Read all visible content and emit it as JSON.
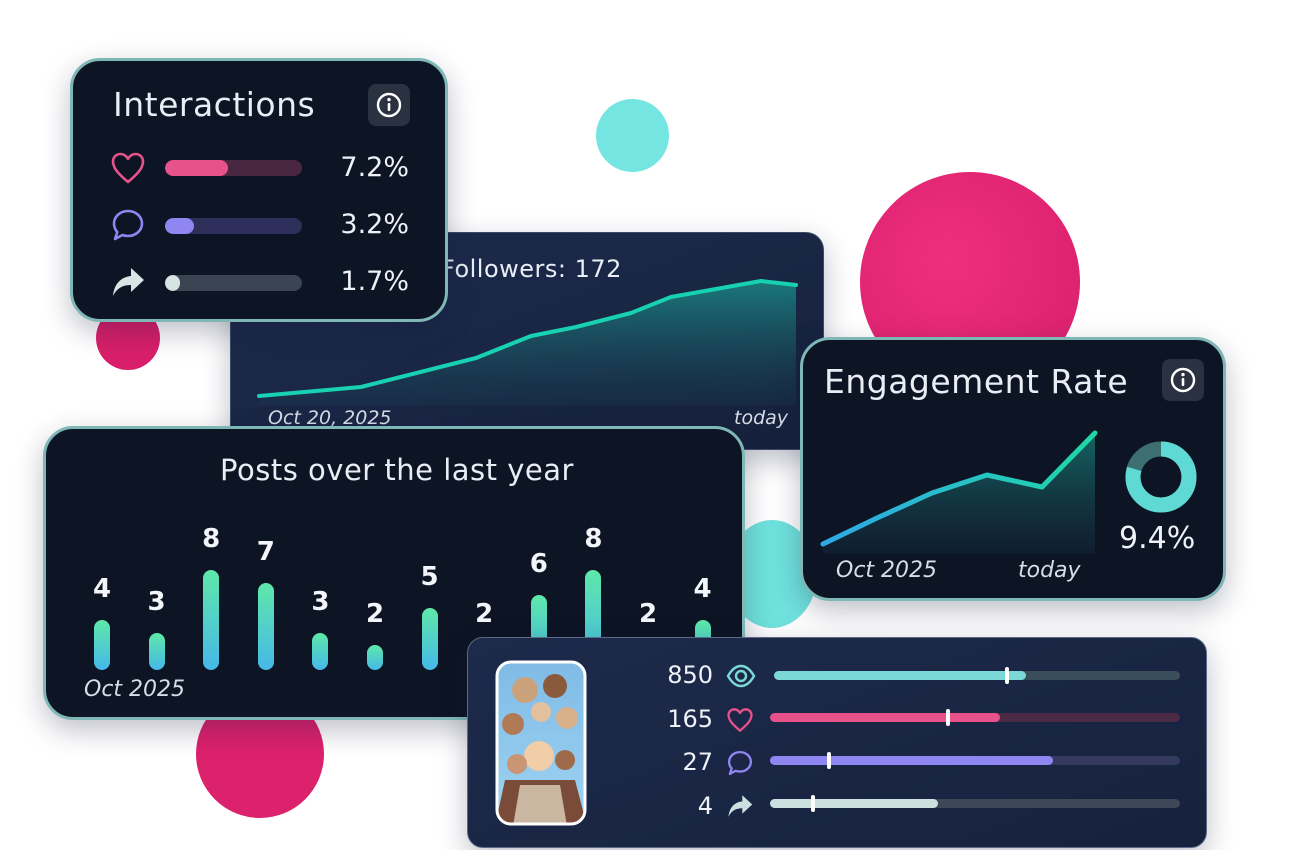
{
  "interactions": {
    "title": "Interactions",
    "info_icon": "info-circle-icon",
    "rows": [
      {
        "icon": "heart-icon",
        "value": "7.2%",
        "fraction": 0.46,
        "color": "#e7528a",
        "track": "#4a2740"
      },
      {
        "icon": "comment-icon",
        "value": "3.2%",
        "fraction": 0.21,
        "color": "#8f86f2",
        "track": "#2e2f5a"
      },
      {
        "icon": "share-icon",
        "value": "1.7%",
        "fraction": 0.11,
        "color": "#d6e4e4",
        "track": "#3b4453"
      }
    ]
  },
  "followers": {
    "title": "Followers: 172",
    "start_label": "Oct 20, 2025",
    "end_label": "today"
  },
  "engagement": {
    "title": "Engagement Rate",
    "info_icon": "info-circle-icon",
    "value": "9.4%",
    "start_label": "Oct 2025",
    "end_label": "today"
  },
  "posts": {
    "title": "Posts over the last year",
    "start_label": "Oct 2025"
  },
  "chart_data": {
    "type": "bar",
    "title": "Posts over the last year",
    "values": [
      4,
      3,
      8,
      7,
      3,
      2,
      5,
      2,
      6,
      8,
      2,
      4
    ]
  },
  "post_stats": {
    "image_icon": "group-photo-icon",
    "rows": [
      {
        "icon": "eye-icon",
        "value": "850",
        "fraction": 0.62,
        "marker": 0.57,
        "color": "#7ad9d6",
        "track": "#3a4d5a"
      },
      {
        "icon": "heart-icon",
        "value": "165",
        "fraction": 0.56,
        "marker": 0.43,
        "color": "#e7528a",
        "track": "#4b2a45"
      },
      {
        "icon": "comment-icon",
        "value": "27",
        "fraction": 0.69,
        "marker": 0.14,
        "color": "#8f86f2",
        "track": "#333a5e"
      },
      {
        "icon": "share-icon",
        "value": "4",
        "fraction": 0.41,
        "marker": 0.1,
        "color": "#cde0e0",
        "track": "#3e4755"
      }
    ]
  }
}
